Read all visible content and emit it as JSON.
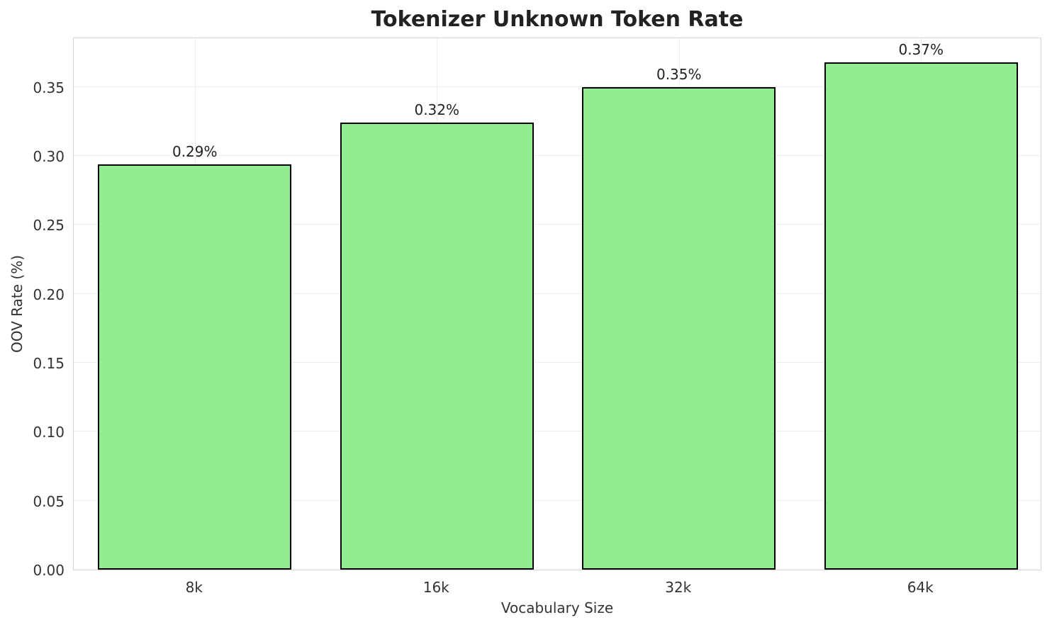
{
  "chart_data": {
    "type": "bar",
    "title": "Tokenizer Unknown Token Rate",
    "xlabel": "Vocabulary Size",
    "ylabel": "OOV Rate (%)",
    "categories": [
      "8k",
      "16k",
      "32k",
      "64k"
    ],
    "values": [
      0.294,
      0.324,
      0.35,
      0.368
    ],
    "bar_labels": [
      "0.29%",
      "0.32%",
      "0.35%",
      "0.37%"
    ],
    "yticks": [
      "0.00",
      "0.05",
      "0.10",
      "0.15",
      "0.20",
      "0.25",
      "0.30",
      "0.35"
    ],
    "ytick_values": [
      0.0,
      0.05,
      0.1,
      0.15,
      0.2,
      0.25,
      0.3,
      0.35
    ],
    "ylim": [
      0,
      0.3864
    ],
    "grid": true,
    "legend": "none",
    "bar_color": "#90EE90",
    "bar_edge_color": "#000000",
    "grid_color": "#ededed",
    "spine_color": "#d4d4d4",
    "title_color": "#222222",
    "tick_color": "#333333"
  }
}
